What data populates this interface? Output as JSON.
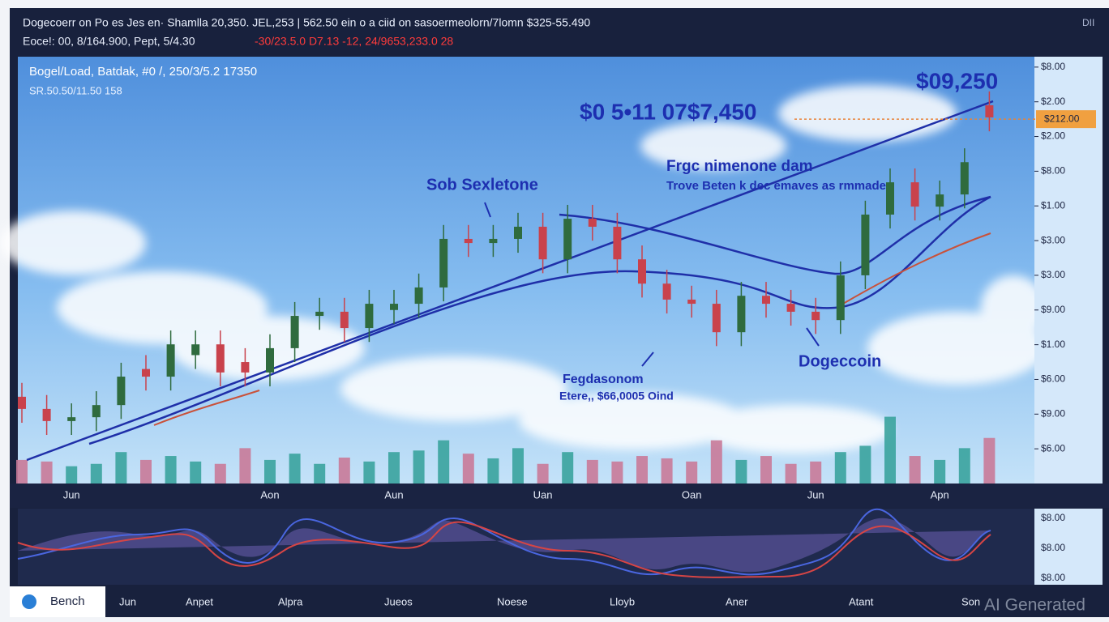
{
  "header": {
    "title": "Dogecoerr on Po es Jes en· Shamlla 20,350. JEL,253 | 562.50 ein o a ciid on sasoermeolorn/7lomn $325-55.490",
    "info": "Eoce!: 00, 8/164.900, Pept, 5/4.30",
    "change": "-30/23.5.0 D7.13 -12, 24/9653,233.0 28",
    "corner": "DII"
  },
  "overlay": {
    "line1": "Bogel/Load, Batdak, #0 /, 250/3/5.2 17350",
    "line2": "SR.50.50/11.50 158"
  },
  "annotations": {
    "peak_price": "$09,250",
    "range": "$0 5•11 07$7,450",
    "left_note": "Sob Sexletone",
    "right_title": "Frgc nimenone dam",
    "right_note": "Trove Beten k dec emaves as rmmade",
    "coin": "Dogeccoin",
    "low_title": "Fegdasonom",
    "low_note": "Etere,, $66,0005 Oind"
  },
  "chart_data": {
    "type": "candlestick",
    "categories": [
      null,
      null,
      "Jun",
      null,
      null,
      null,
      null,
      null,
      null,
      null,
      "Aon",
      null,
      null,
      null,
      null,
      "Aun",
      null,
      null,
      null,
      null,
      null,
      "Uan",
      null,
      null,
      null,
      null,
      null,
      "Oan",
      null,
      null,
      null,
      null,
      "Jun",
      null,
      null,
      null,
      null,
      "Apn",
      null,
      null
    ],
    "open": [
      2.5,
      2.15,
      1.8,
      1.91,
      2.26,
      3.3,
      3.08,
      3.7,
      4.01,
      3.5,
      3.2,
      3.9,
      4.83,
      4.95,
      4.48,
      5.0,
      5.18,
      5.65,
      7.05,
      6.93,
      7.05,
      7.4,
      6.46,
      7.63,
      7.4,
      6.46,
      5.76,
      5.3,
      5.18,
      4.36,
      5.41,
      5.18,
      4.95,
      4.71,
      6.0,
      7.75,
      8.68,
      7.98,
      8.33,
      10.9
    ],
    "high": [
      2.9,
      2.55,
      2.31,
      2.66,
      3.48,
      3.7,
      4.41,
      4.41,
      4.41,
      3.9,
      4.3,
      5.23,
      5.35,
      5.35,
      5.58,
      5.58,
      6.05,
      7.45,
      7.45,
      7.45,
      7.8,
      7.8,
      8.03,
      8.03,
      7.8,
      6.86,
      6.16,
      5.7,
      5.58,
      5.81,
      5.81,
      5.58,
      5.35,
      6.4,
      8.15,
      9.08,
      9.08,
      8.73,
      9.66,
      11.3
    ],
    "low": [
      1.75,
      1.4,
      1.4,
      1.51,
      1.86,
      2.68,
      2.68,
      3.3,
      2.8,
      2.8,
      2.8,
      3.5,
      4.43,
      4.08,
      4.08,
      4.6,
      4.78,
      5.25,
      6.53,
      6.53,
      6.65,
      6.06,
      6.06,
      7.0,
      6.06,
      5.36,
      4.9,
      4.78,
      3.96,
      3.96,
      4.78,
      4.55,
      4.31,
      4.31,
      5.6,
      7.35,
      7.58,
      7.58,
      7.93,
      10.15
    ],
    "close": [
      2.15,
      1.8,
      1.91,
      2.26,
      3.08,
      3.08,
      4.01,
      4.01,
      3.2,
      3.2,
      3.9,
      4.83,
      4.95,
      4.48,
      5.18,
      5.18,
      5.65,
      7.05,
      6.93,
      7.05,
      7.4,
      6.46,
      7.63,
      7.4,
      6.46,
      5.76,
      5.3,
      5.18,
      4.36,
      5.41,
      5.18,
      4.95,
      4.71,
      6.0,
      7.75,
      8.68,
      7.98,
      8.33,
      9.26,
      10.55
    ],
    "up_color": "#2f6b3e",
    "down_color": "#c9424c",
    "ylim": [
      0,
      12.3
    ],
    "yticks": [
      {
        "value": 12,
        "label": "$8.00"
      },
      {
        "value": 11,
        "label": "$2.00"
      },
      {
        "value": 10,
        "label": "$2.00"
      },
      {
        "value": 9,
        "label": "$8.00"
      },
      {
        "value": 8,
        "label": "$1.00"
      },
      {
        "value": 7,
        "label": "$3.00"
      },
      {
        "value": 6,
        "label": "$3.00"
      },
      {
        "value": 5,
        "label": "$9.00"
      },
      {
        "value": 4,
        "label": "$1.00"
      },
      {
        "value": 3,
        "label": "$6.00"
      },
      {
        "value": 2,
        "label": "$9.00"
      },
      {
        "value": 1,
        "label": "$6.00"
      }
    ],
    "price_tag": {
      "value": 10.5,
      "label": "$212.00"
    },
    "volume": {
      "values": [
        30,
        28,
        22,
        25,
        40,
        30,
        35,
        28,
        25,
        45,
        30,
        38,
        25,
        33,
        28,
        40,
        42,
        55,
        38,
        32,
        45,
        25,
        40,
        30,
        28,
        35,
        32,
        28,
        55,
        30,
        35,
        25,
        28,
        40,
        48,
        85,
        35,
        30,
        45,
        58
      ],
      "up_color": "#3aa39d",
      "down_color": "#c97a98",
      "vlim": [
        0,
        100
      ]
    }
  },
  "oscillator": {
    "yticks": [
      "$8.00",
      "$8.00",
      "$8.00"
    ]
  },
  "footer": {
    "tab": "Bench",
    "labels": [
      "Jun",
      "Anpet",
      "Alpra",
      "Jueos",
      "Noese",
      "Lloyb",
      "Aner",
      "Atant",
      "Son"
    ],
    "watermark": "AI Generated"
  }
}
